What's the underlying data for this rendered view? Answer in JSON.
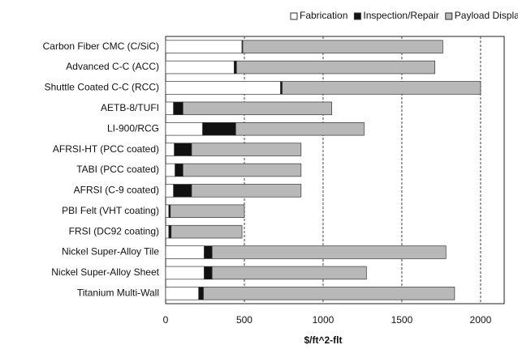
{
  "chart_data": {
    "type": "stacked-barh",
    "xlabel": "$/ft^2-flt",
    "categories": [
      "Carbon Fiber CMC (C/SiC)",
      "Advanced C-C (ACC)",
      "Shuttle Coated C-C (RCC)",
      "AETB-8/TUFI",
      "LI-900/RCG",
      "AFRSI-HT  (PCC coated)",
      "TABI  (PCC coated)",
      "AFRSI  (C-9 coated)",
      "PBI Felt (VHT coating)",
      "FRSI (DC92 coating)",
      "Nickel Super-Alloy Tile",
      "Nickel Super-Alloy Sheet",
      "Titanium  Multi-Wall"
    ],
    "series": [
      {
        "name": "Fabrication",
        "color": "#ffffff",
        "values": [
          485,
          435,
          730,
          50,
          235,
          55,
          60,
          50,
          20,
          20,
          245,
          245,
          210
        ]
      },
      {
        "name": "Inspection/Repair",
        "color": "#111111",
        "values": [
          5,
          15,
          10,
          60,
          210,
          110,
          50,
          115,
          10,
          15,
          50,
          50,
          30
        ]
      },
      {
        "name": "Payload Displacement",
        "color": "#b8b8b8",
        "values": [
          1270,
          1260,
          1260,
          945,
          815,
          695,
          750,
          695,
          470,
          450,
          1485,
          980,
          1595
        ]
      }
    ],
    "xlim": [
      0,
      2150
    ],
    "xticks": [
      0,
      500,
      1000,
      1500,
      2000
    ],
    "grid": true
  }
}
